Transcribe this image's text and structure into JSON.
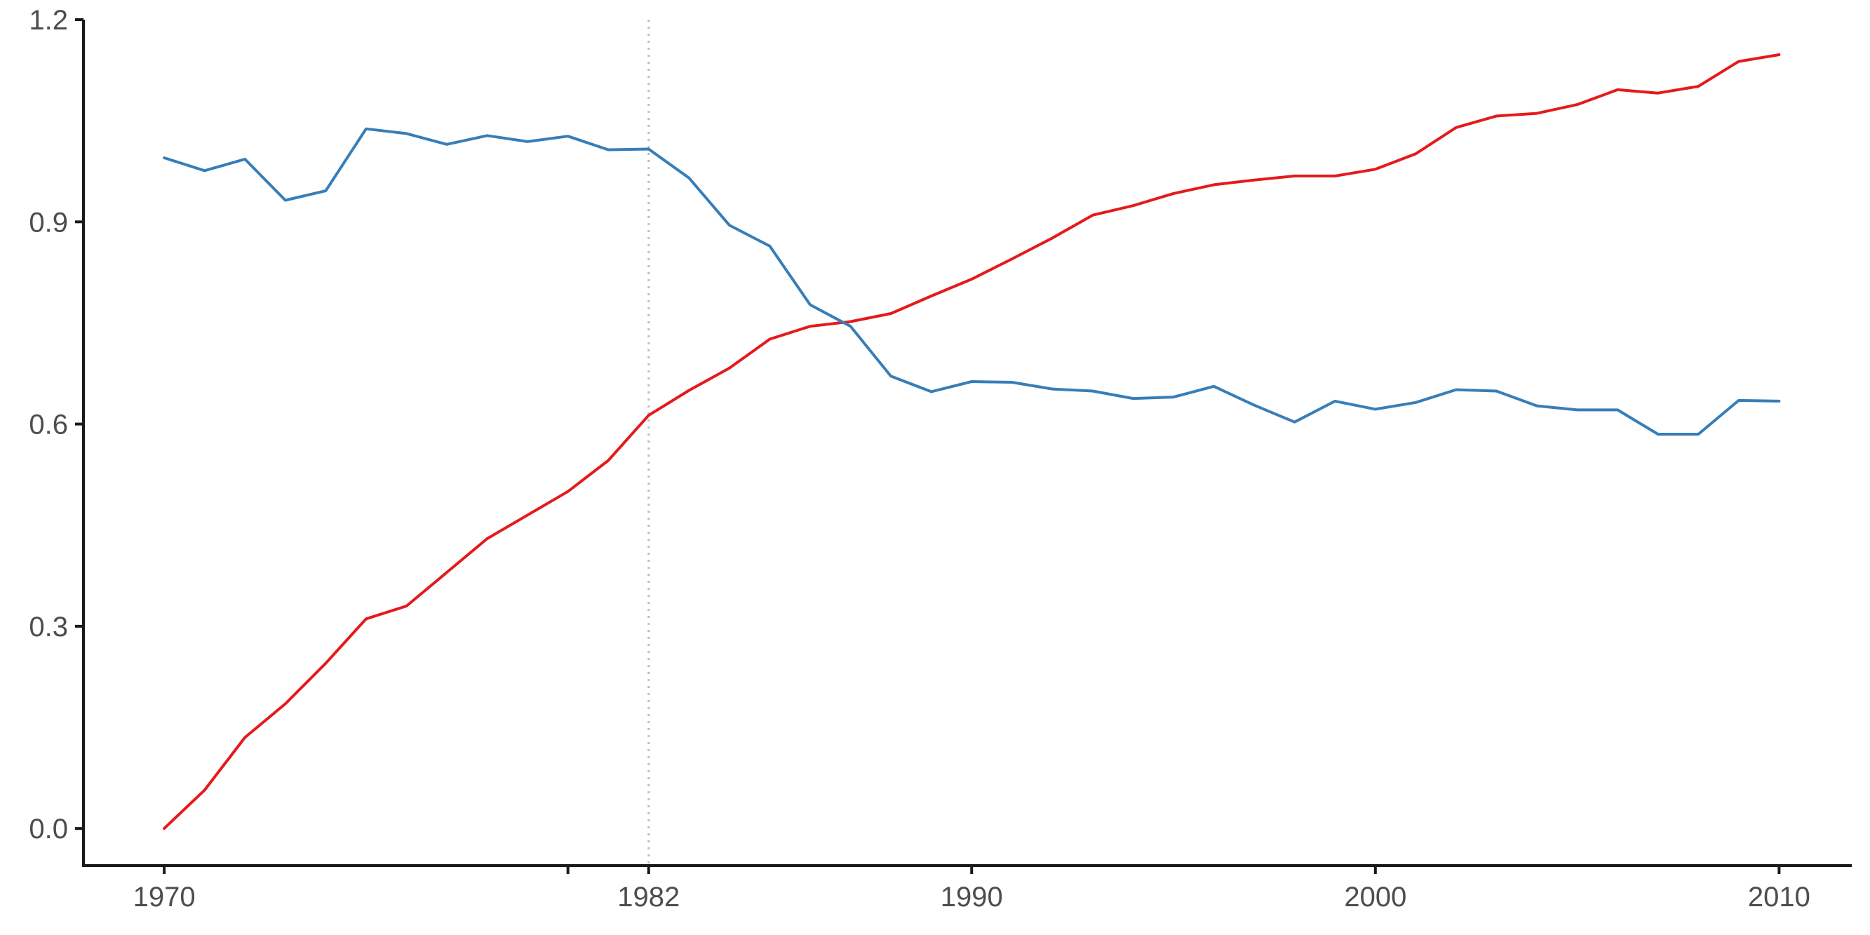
{
  "chart_data": {
    "type": "line",
    "title": "",
    "xlabel": "",
    "ylabel": "",
    "xlim": [
      1968,
      2011.8
    ],
    "ylim": [
      -0.055,
      1.2
    ],
    "x_ticks": [
      1970,
      1980,
      1982,
      1990,
      2000,
      2010
    ],
    "x_tick_labels": [
      "1970",
      "",
      "1982",
      "1990",
      "2000",
      "2010"
    ],
    "y_ticks": [
      0.0,
      0.3,
      0.6,
      0.9,
      1.2
    ],
    "y_tick_labels": [
      "0.0",
      "0.3",
      "0.6",
      "0.9",
      "1.2"
    ],
    "reference_line": {
      "x": 1982,
      "style": "dotted",
      "color": "#bdbdbd"
    },
    "grid": false,
    "legend": "none",
    "x": [
      1970,
      1971,
      1972,
      1973,
      1974,
      1975,
      1976,
      1977,
      1978,
      1979,
      1980,
      1981,
      1982,
      1983,
      1984,
      1985,
      1986,
      1987,
      1988,
      1989,
      1990,
      1991,
      1992,
      1993,
      1994,
      1995,
      1996,
      1997,
      1998,
      1999,
      2000,
      2001,
      2002,
      2003,
      2004,
      2005,
      2006,
      2007,
      2008,
      2009,
      2010
    ],
    "series": [
      {
        "color": "#e41a1c",
        "values": [
          0.0,
          0.057,
          0.135,
          0.185,
          0.245,
          0.311,
          0.33,
          0.38,
          0.43,
          0.465,
          0.5,
          0.546,
          0.613,
          0.65,
          0.683,
          0.726,
          0.745,
          0.752,
          0.764,
          0.79,
          0.815,
          0.845,
          0.876,
          0.91,
          0.924,
          0.942,
          0.955,
          0.962,
          0.968,
          0.968,
          0.978,
          1.001,
          1.04,
          1.057,
          1.061,
          1.074,
          1.096,
          1.091,
          1.101,
          1.138,
          1.148
        ]
      },
      {
        "color": "#377eb8",
        "values": [
          0.995,
          0.976,
          0.993,
          0.932,
          0.946,
          1.038,
          1.031,
          1.015,
          1.028,
          1.019,
          1.027,
          1.007,
          1.008,
          0.965,
          0.895,
          0.864,
          0.777,
          0.745,
          0.671,
          0.648,
          0.663,
          0.662,
          0.652,
          0.649,
          0.638,
          0.64,
          0.656,
          0.628,
          0.603,
          0.634,
          0.622,
          0.632,
          0.651,
          0.649,
          0.627,
          0.621,
          0.621,
          0.585,
          0.585,
          0.635,
          0.634
        ]
      }
    ]
  }
}
